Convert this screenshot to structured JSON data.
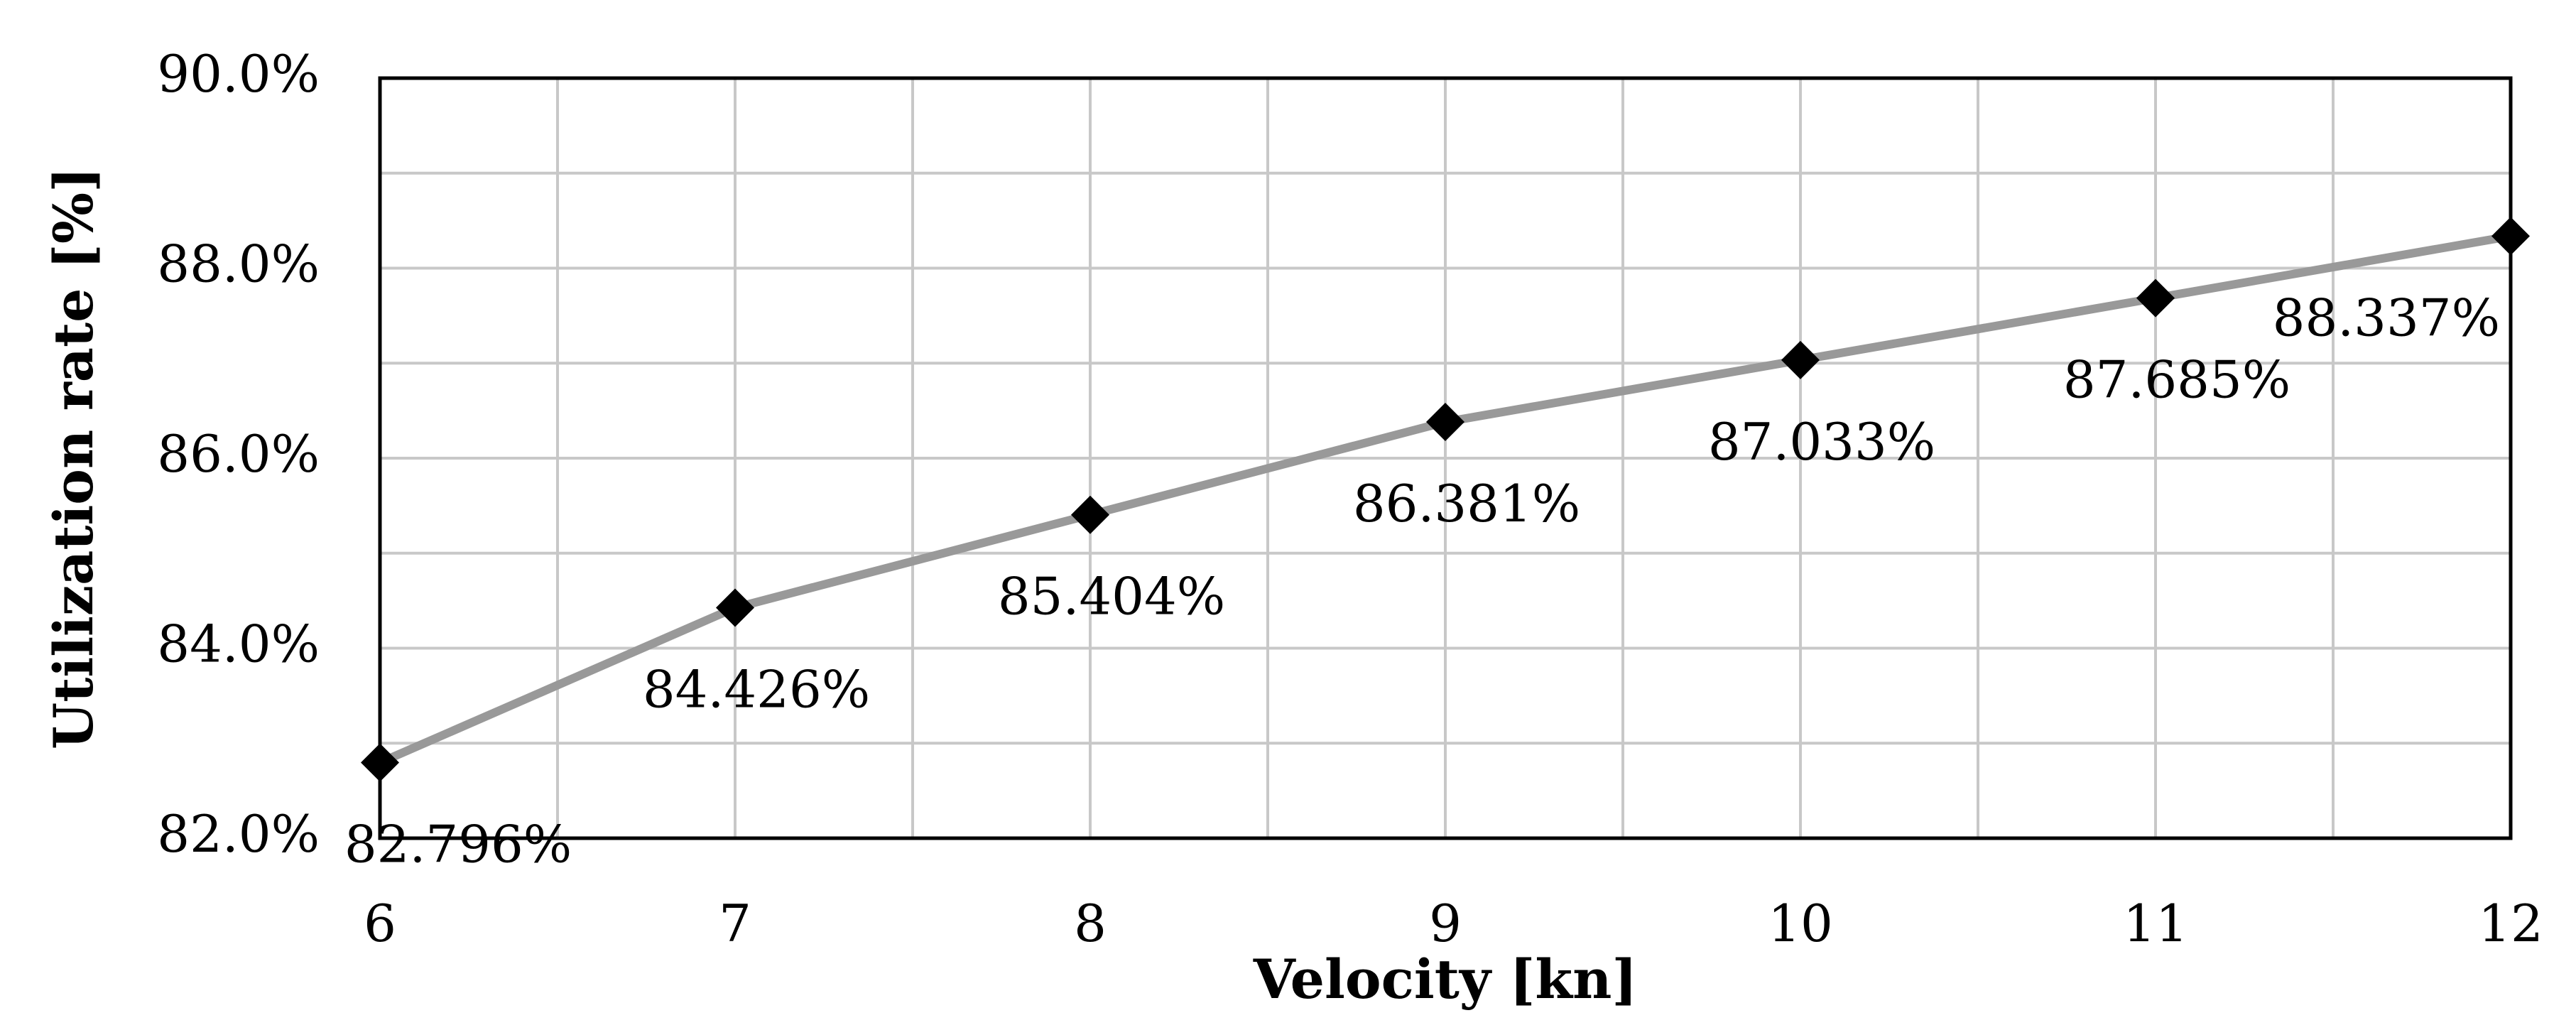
{
  "chart_data": {
    "type": "line",
    "title": "",
    "xlabel": "Velocity [kn]",
    "ylabel": "Utilization rate [%]",
    "x": [
      6,
      7,
      8,
      9,
      10,
      11,
      12
    ],
    "xlim": [
      6,
      12
    ],
    "ylim": [
      82.0,
      90.0
    ],
    "x_ticks": [
      "6",
      "7",
      "8",
      "9",
      "10",
      "11",
      "12"
    ],
    "y_ticks": [
      "82.0%",
      "84.0%",
      "86.0%",
      "88.0%",
      "90.0%"
    ],
    "grid": true,
    "series": [
      {
        "name": "Utilization rate",
        "values": [
          82.796,
          84.426,
          85.404,
          86.381,
          87.033,
          87.685,
          88.337
        ],
        "labels": [
          "82.796%",
          "84.426%",
          "85.404%",
          "86.381%",
          "87.033%",
          "87.685%",
          "88.337%"
        ],
        "marker": "diamond"
      }
    ],
    "colors": {
      "line": "#999999",
      "marker": "#000000",
      "grid": "#c8c8c8",
      "frame": "#000000"
    }
  }
}
